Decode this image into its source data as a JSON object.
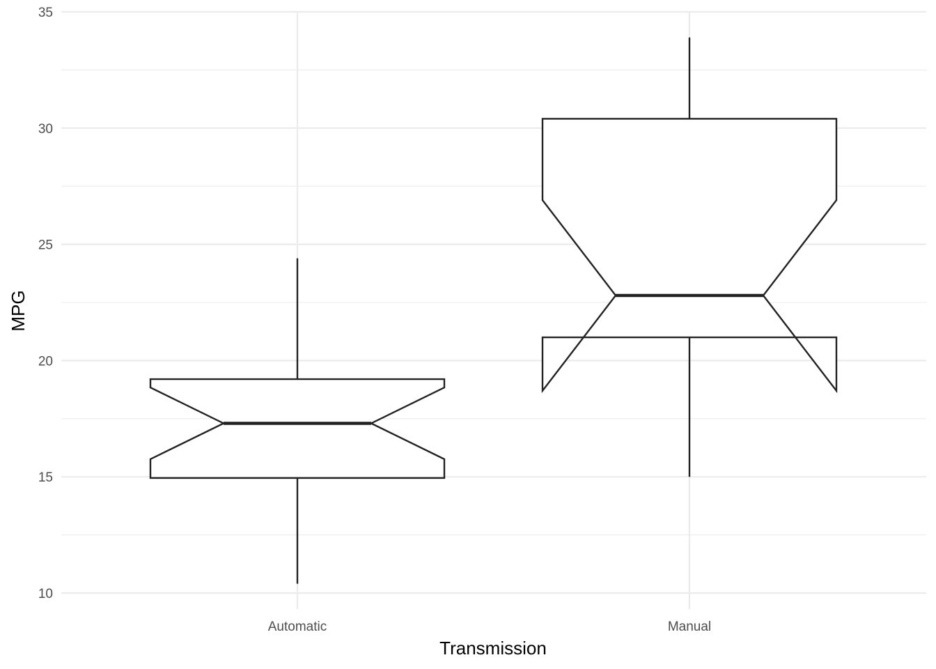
{
  "chart_data": {
    "type": "boxplot",
    "notched": true,
    "xlabel": "Transmission",
    "ylabel": "MPG",
    "ylim": [
      10,
      35
    ],
    "y_ticks": [
      10,
      15,
      20,
      25,
      30,
      35
    ],
    "y_tick_labels": [
      "10",
      "15",
      "20",
      "25",
      "30",
      "35"
    ],
    "grid": true,
    "categories": [
      "Automatic",
      "Manual"
    ],
    "boxes": [
      {
        "category": "Automatic",
        "whisker_low": 10.4,
        "q1": 14.95,
        "median": 17.3,
        "q3": 19.2,
        "whisker_high": 24.4,
        "notch_low": 15.76,
        "notch_high": 18.84
      },
      {
        "category": "Manual",
        "whisker_low": 15.0,
        "q1": 21.0,
        "median": 22.8,
        "q3": 30.4,
        "whisker_high": 33.9,
        "notch_low": 18.7,
        "notch_high": 26.9
      }
    ],
    "colors": {
      "box_fill": "#ffffff",
      "box_line": "#222222",
      "grid": "#ebebeb"
    }
  }
}
